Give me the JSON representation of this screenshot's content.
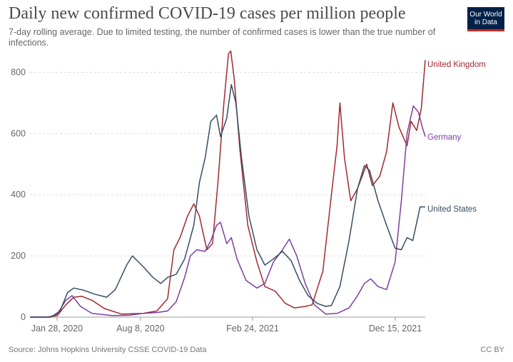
{
  "header": {
    "title": "Daily new confirmed COVID-19 cases per million people",
    "subtitle": "7-day rolling average. Due to limited testing, the number of confirmed cases is lower than the true number of infections."
  },
  "logo": {
    "line1": "Our World",
    "line2": "in Data"
  },
  "footer": {
    "source": "Source: Johns Hopkins University CSSE COVID-19 Data",
    "license": "CC BY"
  },
  "colors": {
    "united_kingdom": "#a2292f",
    "germany": "#7b3fa0",
    "united_states": "#364d63",
    "grid": "#dddddd",
    "axis": "#999999"
  },
  "chart_data": {
    "type": "line",
    "title": "Daily new confirmed COVID-19 cases per million people",
    "ylim": [
      0,
      850
    ],
    "yticks": [
      0,
      200,
      400,
      600,
      800
    ],
    "x_ticks": [
      "Jan 28, 2020",
      "Aug 8, 2020",
      "Feb 24, 2021",
      "Dec 15, 2021"
    ],
    "grid": "horizontal dashed",
    "legend": "line-end labels",
    "series": [
      {
        "name": "United Kingdom",
        "color": "#a2292f",
        "points": [
          [
            "2020-01-22",
            0
          ],
          [
            "2020-02-20",
            0
          ],
          [
            "2020-03-10",
            5
          ],
          [
            "2020-03-25",
            40
          ],
          [
            "2020-04-08",
            65
          ],
          [
            "2020-04-22",
            68
          ],
          [
            "2020-05-10",
            55
          ],
          [
            "2020-06-01",
            28
          ],
          [
            "2020-07-01",
            10
          ],
          [
            "2020-08-08",
            12
          ],
          [
            "2020-09-01",
            20
          ],
          [
            "2020-09-20",
            60
          ],
          [
            "2020-10-01",
            220
          ],
          [
            "2020-10-12",
            260
          ],
          [
            "2020-10-25",
            330
          ],
          [
            "2020-11-05",
            370
          ],
          [
            "2020-11-15",
            330
          ],
          [
            "2020-11-28",
            220
          ],
          [
            "2020-12-08",
            240
          ],
          [
            "2020-12-18",
            450
          ],
          [
            "2020-12-28",
            700
          ],
          [
            "2021-01-05",
            860
          ],
          [
            "2021-01-09",
            870
          ],
          [
            "2021-01-15",
            780
          ],
          [
            "2021-01-25",
            550
          ],
          [
            "2021-02-08",
            300
          ],
          [
            "2021-02-24",
            180
          ],
          [
            "2021-03-10",
            100
          ],
          [
            "2021-03-28",
            85
          ],
          [
            "2021-04-15",
            45
          ],
          [
            "2021-05-01",
            30
          ],
          [
            "2021-05-20",
            35
          ],
          [
            "2021-06-01",
            40
          ],
          [
            "2021-06-20",
            150
          ],
          [
            "2021-07-05",
            400
          ],
          [
            "2021-07-15",
            560
          ],
          [
            "2021-07-20",
            700
          ],
          [
            "2021-07-28",
            520
          ],
          [
            "2021-08-08",
            380
          ],
          [
            "2021-08-20",
            420
          ],
          [
            "2021-09-05",
            500
          ],
          [
            "2021-09-15",
            430
          ],
          [
            "2021-09-28",
            460
          ],
          [
            "2021-10-10",
            540
          ],
          [
            "2021-10-21",
            700
          ],
          [
            "2021-11-01",
            620
          ],
          [
            "2021-11-15",
            560
          ],
          [
            "2021-11-22",
            640
          ],
          [
            "2021-12-02",
            610
          ],
          [
            "2021-12-10",
            680
          ],
          [
            "2021-12-17",
            840
          ]
        ]
      },
      {
        "name": "Germany",
        "color": "#7b3fa0",
        "points": [
          [
            "2020-01-22",
            0
          ],
          [
            "2020-02-25",
            0
          ],
          [
            "2020-03-10",
            10
          ],
          [
            "2020-03-25",
            55
          ],
          [
            "2020-04-05",
            70
          ],
          [
            "2020-04-20",
            35
          ],
          [
            "2020-05-10",
            12
          ],
          [
            "2020-06-15",
            5
          ],
          [
            "2020-07-15",
            6
          ],
          [
            "2020-08-08",
            12
          ],
          [
            "2020-09-01",
            15
          ],
          [
            "2020-09-20",
            20
          ],
          [
            "2020-10-05",
            50
          ],
          [
            "2020-10-20",
            130
          ],
          [
            "2020-10-30",
            200
          ],
          [
            "2020-11-10",
            220
          ],
          [
            "2020-11-25",
            215
          ],
          [
            "2020-12-05",
            250
          ],
          [
            "2020-12-15",
            300
          ],
          [
            "2020-12-22",
            310
          ],
          [
            "2021-01-02",
            240
          ],
          [
            "2021-01-10",
            260
          ],
          [
            "2021-01-20",
            190
          ],
          [
            "2021-02-05",
            120
          ],
          [
            "2021-02-24",
            95
          ],
          [
            "2021-03-10",
            110
          ],
          [
            "2021-03-25",
            180
          ],
          [
            "2021-04-10",
            220
          ],
          [
            "2021-04-22",
            255
          ],
          [
            "2021-05-05",
            200
          ],
          [
            "2021-05-20",
            110
          ],
          [
            "2021-06-05",
            40
          ],
          [
            "2021-06-25",
            10
          ],
          [
            "2021-07-15",
            12
          ],
          [
            "2021-08-05",
            30
          ],
          [
            "2021-08-20",
            70
          ],
          [
            "2021-09-01",
            110
          ],
          [
            "2021-09-12",
            125
          ],
          [
            "2021-09-25",
            100
          ],
          [
            "2021-10-10",
            90
          ],
          [
            "2021-10-25",
            180
          ],
          [
            "2021-11-05",
            380
          ],
          [
            "2021-11-15",
            600
          ],
          [
            "2021-11-26",
            690
          ],
          [
            "2021-12-05",
            670
          ],
          [
            "2021-12-12",
            620
          ],
          [
            "2021-12-17",
            590
          ]
        ]
      },
      {
        "name": "United States",
        "color": "#364d63",
        "points": [
          [
            "2020-01-22",
            0
          ],
          [
            "2020-02-28",
            0
          ],
          [
            "2020-03-15",
            20
          ],
          [
            "2020-03-28",
            80
          ],
          [
            "2020-04-08",
            95
          ],
          [
            "2020-04-25",
            88
          ],
          [
            "2020-05-15",
            75
          ],
          [
            "2020-06-05",
            65
          ],
          [
            "2020-06-20",
            90
          ],
          [
            "2020-07-10",
            170
          ],
          [
            "2020-07-20",
            200
          ],
          [
            "2020-08-08",
            165
          ],
          [
            "2020-08-25",
            130
          ],
          [
            "2020-09-08",
            110
          ],
          [
            "2020-09-20",
            130
          ],
          [
            "2020-10-05",
            140
          ],
          [
            "2020-10-20",
            190
          ],
          [
            "2020-11-05",
            300
          ],
          [
            "2020-11-15",
            440
          ],
          [
            "2020-11-25",
            520
          ],
          [
            "2020-12-05",
            640
          ],
          [
            "2020-12-15",
            660
          ],
          [
            "2020-12-22",
            590
          ],
          [
            "2021-01-02",
            650
          ],
          [
            "2021-01-10",
            760
          ],
          [
            "2021-01-18",
            700
          ],
          [
            "2021-01-28",
            520
          ],
          [
            "2021-02-10",
            330
          ],
          [
            "2021-02-24",
            220
          ],
          [
            "2021-03-10",
            170
          ],
          [
            "2021-03-25",
            190
          ],
          [
            "2021-04-10",
            215
          ],
          [
            "2021-04-25",
            185
          ],
          [
            "2021-05-10",
            120
          ],
          [
            "2021-05-25",
            70
          ],
          [
            "2021-06-10",
            45
          ],
          [
            "2021-06-25",
            35
          ],
          [
            "2021-07-05",
            38
          ],
          [
            "2021-07-20",
            100
          ],
          [
            "2021-08-05",
            250
          ],
          [
            "2021-08-20",
            420
          ],
          [
            "2021-09-01",
            495
          ],
          [
            "2021-09-10",
            480
          ],
          [
            "2021-09-25",
            380
          ],
          [
            "2021-10-10",
            300
          ],
          [
            "2021-10-25",
            225
          ],
          [
            "2021-11-05",
            220
          ],
          [
            "2021-11-15",
            260
          ],
          [
            "2021-11-25",
            250
          ],
          [
            "2021-12-01",
            300
          ],
          [
            "2021-12-08",
            360
          ],
          [
            "2021-12-17",
            360
          ]
        ]
      }
    ]
  }
}
